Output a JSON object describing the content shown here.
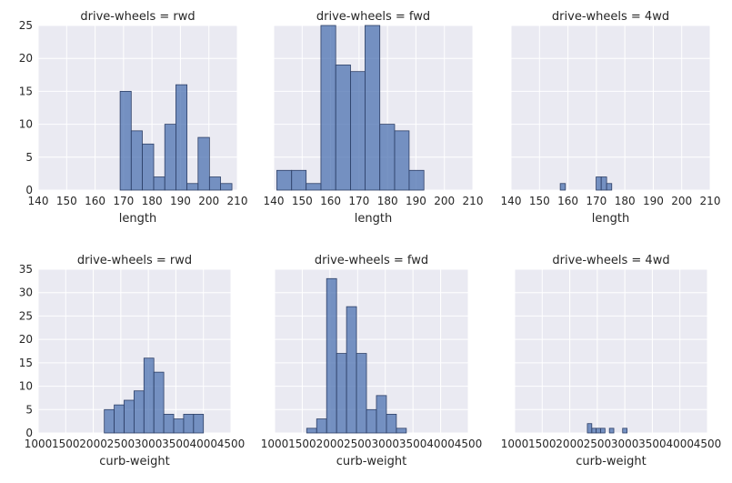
{
  "chart_data": [
    {
      "type": "bar",
      "title": "drive-wheels = rwd",
      "xlabel": "length",
      "xlim": [
        140,
        210
      ],
      "xticks": [
        140,
        150,
        160,
        170,
        180,
        190,
        200,
        210
      ],
      "ylim": [
        0,
        25
      ],
      "yticks": [
        0,
        5,
        10,
        15,
        20,
        25
      ],
      "grid": true,
      "bars": [
        {
          "x0": 168.8,
          "x1": 172.7,
          "value": 15
        },
        {
          "x0": 172.7,
          "x1": 176.6,
          "value": 9
        },
        {
          "x0": 176.6,
          "x1": 180.6,
          "value": 7
        },
        {
          "x0": 180.6,
          "x1": 184.5,
          "value": 2
        },
        {
          "x0": 184.5,
          "x1": 188.4,
          "value": 10
        },
        {
          "x0": 188.4,
          "x1": 192.3,
          "value": 16
        },
        {
          "x0": 192.3,
          "x1": 196.2,
          "value": 1
        },
        {
          "x0": 196.2,
          "x1": 200.2,
          "value": 8
        },
        {
          "x0": 200.2,
          "x1": 204.1,
          "value": 2
        },
        {
          "x0": 204.1,
          "x1": 208.1,
          "value": 1
        }
      ]
    },
    {
      "type": "bar",
      "title": "drive-wheels = fwd",
      "xlabel": "length",
      "xlim": [
        140,
        210
      ],
      "xticks": [
        140,
        150,
        160,
        170,
        180,
        190,
        200,
        210
      ],
      "ylim": [
        0,
        25
      ],
      "yticks": [],
      "grid": true,
      "bars": [
        {
          "x0": 141.1,
          "x1": 146.3,
          "value": 3
        },
        {
          "x0": 146.3,
          "x1": 151.4,
          "value": 3
        },
        {
          "x0": 151.4,
          "x1": 156.6,
          "value": 1
        },
        {
          "x0": 156.6,
          "x1": 161.8,
          "value": 25
        },
        {
          "x0": 161.8,
          "x1": 167.0,
          "value": 19
        },
        {
          "x0": 167.0,
          "x1": 172.1,
          "value": 18
        },
        {
          "x0": 172.1,
          "x1": 177.3,
          "value": 25
        },
        {
          "x0": 177.3,
          "x1": 182.5,
          "value": 10
        },
        {
          "x0": 182.5,
          "x1": 187.6,
          "value": 9
        },
        {
          "x0": 187.6,
          "x1": 192.8,
          "value": 3
        }
      ]
    },
    {
      "type": "bar",
      "title": "drive-wheels = 4wd",
      "xlabel": "length",
      "xlim": [
        140,
        210
      ],
      "xticks": [
        140,
        150,
        160,
        170,
        180,
        190,
        200,
        210
      ],
      "ylim": [
        0,
        25
      ],
      "yticks": [],
      "grid": true,
      "bars": [
        {
          "x0": 157.3,
          "x1": 159.1,
          "value": 1
        },
        {
          "x0": 159.1,
          "x1": 160.9,
          "value": 0
        },
        {
          "x0": 160.9,
          "x1": 162.7,
          "value": 0
        },
        {
          "x0": 162.7,
          "x1": 164.5,
          "value": 0
        },
        {
          "x0": 164.5,
          "x1": 166.3,
          "value": 0
        },
        {
          "x0": 166.3,
          "x1": 168.1,
          "value": 0
        },
        {
          "x0": 168.1,
          "x1": 169.9,
          "value": 0
        },
        {
          "x0": 169.9,
          "x1": 171.7,
          "value": 2
        },
        {
          "x0": 171.7,
          "x1": 173.6,
          "value": 2
        },
        {
          "x0": 173.6,
          "x1": 175.4,
          "value": 1
        }
      ]
    },
    {
      "type": "bar",
      "title": "drive-wheels = rwd",
      "xlabel": "curb-weight",
      "xlim": [
        1000,
        4500
      ],
      "xticks": [
        1000,
        1500,
        2000,
        2500,
        3000,
        3500,
        4000,
        4500
      ],
      "ylim": [
        0,
        35
      ],
      "yticks": [
        0,
        5,
        10,
        15,
        20,
        25,
        30,
        35
      ],
      "grid": true,
      "bars": [
        {
          "x0": 2200,
          "x1": 2380,
          "value": 5
        },
        {
          "x0": 2380,
          "x1": 2560,
          "value": 6
        },
        {
          "x0": 2560,
          "x1": 2740,
          "value": 7
        },
        {
          "x0": 2740,
          "x1": 2920,
          "value": 9
        },
        {
          "x0": 2920,
          "x1": 3100,
          "value": 16
        },
        {
          "x0": 3100,
          "x1": 3280,
          "value": 13
        },
        {
          "x0": 3280,
          "x1": 3460,
          "value": 4
        },
        {
          "x0": 3460,
          "x1": 3640,
          "value": 3
        },
        {
          "x0": 3640,
          "x1": 3820,
          "value": 4
        },
        {
          "x0": 3820,
          "x1": 4000,
          "value": 4
        }
      ]
    },
    {
      "type": "bar",
      "title": "drive-wheels = fwd",
      "xlabel": "curb-weight",
      "xlim": [
        1000,
        4500
      ],
      "xticks": [
        1000,
        1500,
        2000,
        2500,
        3000,
        3500,
        4000,
        4500
      ],
      "ylim": [
        0,
        35
      ],
      "yticks": [],
      "grid": true,
      "bars": [
        {
          "x0": 1580,
          "x1": 1760,
          "value": 1
        },
        {
          "x0": 1760,
          "x1": 1940,
          "value": 3
        },
        {
          "x0": 1940,
          "x1": 2120,
          "value": 33
        },
        {
          "x0": 2120,
          "x1": 2300,
          "value": 17
        },
        {
          "x0": 2300,
          "x1": 2480,
          "value": 27
        },
        {
          "x0": 2480,
          "x1": 2660,
          "value": 17
        },
        {
          "x0": 2660,
          "x1": 2840,
          "value": 5
        },
        {
          "x0": 2840,
          "x1": 3020,
          "value": 8
        },
        {
          "x0": 3020,
          "x1": 3200,
          "value": 4
        },
        {
          "x0": 3200,
          "x1": 3380,
          "value": 1
        }
      ]
    },
    {
      "type": "bar",
      "title": "drive-wheels = 4wd",
      "xlabel": "curb-weight",
      "xlim": [
        1000,
        4500
      ],
      "xticks": [
        1000,
        1500,
        2000,
        2500,
        3000,
        3500,
        4000,
        4500
      ],
      "ylim": [
        0,
        35
      ],
      "yticks": [],
      "grid": true,
      "bars": [
        {
          "x0": 2320,
          "x1": 2400,
          "value": 2
        },
        {
          "x0": 2400,
          "x1": 2480,
          "value": 1
        },
        {
          "x0": 2480,
          "x1": 2560,
          "value": 1
        },
        {
          "x0": 2560,
          "x1": 2640,
          "value": 1
        },
        {
          "x0": 2640,
          "x1": 2720,
          "value": 0
        },
        {
          "x0": 2720,
          "x1": 2800,
          "value": 1
        },
        {
          "x0": 2800,
          "x1": 2880,
          "value": 0
        },
        {
          "x0": 2880,
          "x1": 2960,
          "value": 0
        },
        {
          "x0": 2960,
          "x1": 3040,
          "value": 1
        },
        {
          "x0": 3040,
          "x1": 3120,
          "value": 0
        }
      ]
    }
  ],
  "style": {
    "panel_bg": "#eaeaf2",
    "grid_color": "#ffffff",
    "bar_fill": "#4c72b0",
    "bar_edge": "#2d3f66",
    "text_color": "#262626"
  }
}
